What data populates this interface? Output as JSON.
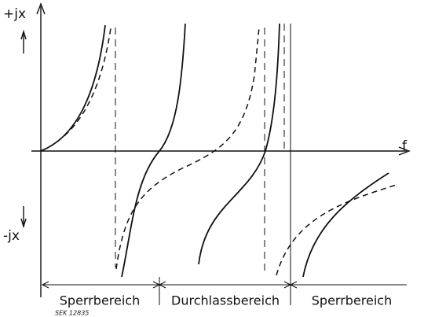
{
  "labels": {
    "positive": "+jx",
    "negative": "-jx",
    "frequency": "f"
  },
  "bands": [
    "Sperrbereich",
    "Durchlassbereich",
    "Sperrbereich"
  ],
  "reference": "SEK 12835"
}
